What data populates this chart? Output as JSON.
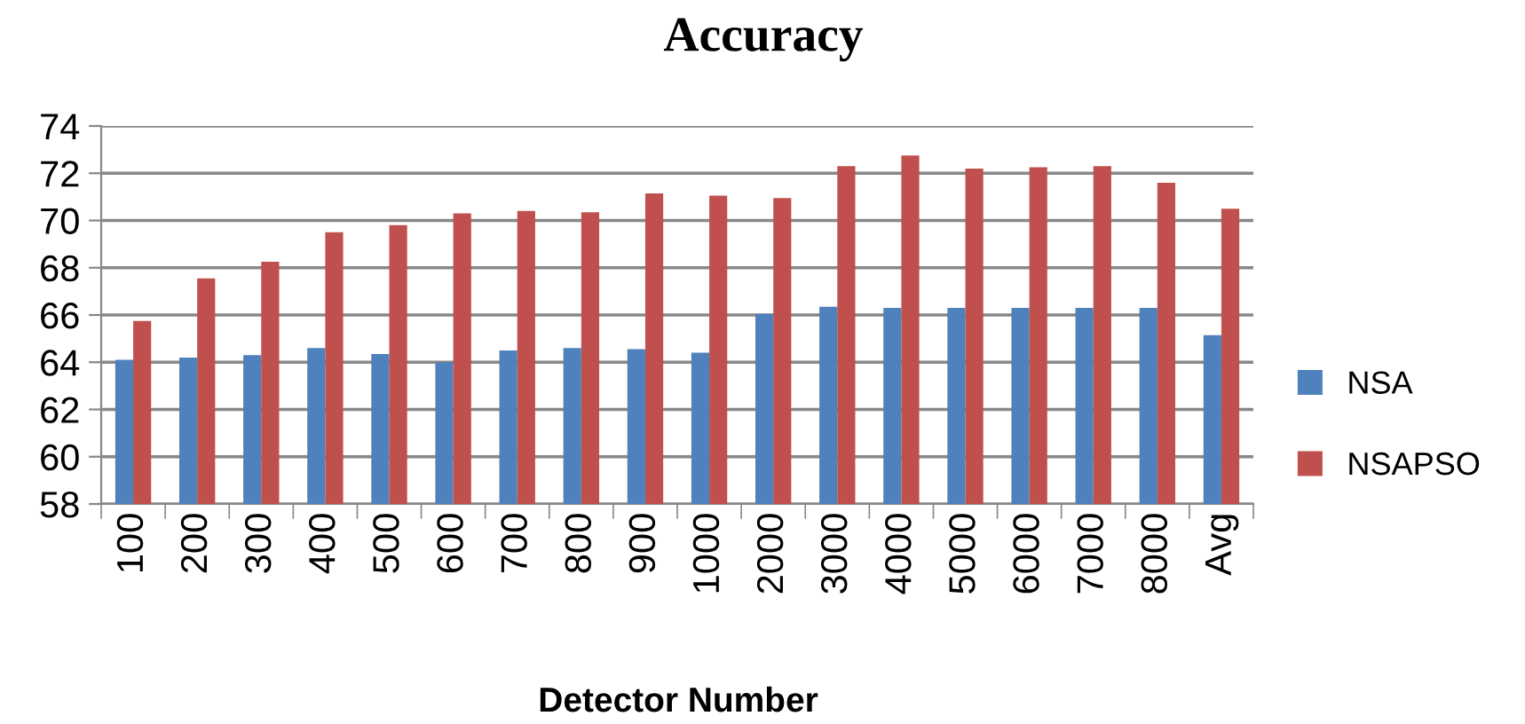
{
  "chart_data": {
    "type": "bar",
    "title": "Accuracy",
    "xlabel": "Detector Number",
    "categories": [
      "100",
      "200",
      "300",
      "400",
      "500",
      "600",
      "700",
      "800",
      "900",
      "1000",
      "2000",
      "3000",
      "4000",
      "5000",
      "6000",
      "7000",
      "8000",
      "Avg"
    ],
    "series": [
      {
        "name": "NSA",
        "color": "#4f81bd",
        "values": [
          64.1,
          64.2,
          64.3,
          64.6,
          64.35,
          64.0,
          64.5,
          64.6,
          64.55,
          64.4,
          66.05,
          66.35,
          66.3,
          66.3,
          66.3,
          66.3,
          66.3,
          65.15
        ]
      },
      {
        "name": "NSAPSO",
        "color": "#c0504d",
        "values": [
          65.75,
          67.55,
          68.25,
          69.5,
          69.8,
          70.3,
          70.4,
          70.35,
          71.15,
          71.05,
          70.95,
          72.3,
          72.75,
          72.2,
          72.25,
          72.3,
          71.6,
          70.5
        ]
      }
    ],
    "ylim": [
      58,
      74
    ],
    "yticks": [
      58,
      60,
      62,
      64,
      66,
      68,
      70,
      72,
      74
    ],
    "grid": "y",
    "legend": "right"
  }
}
